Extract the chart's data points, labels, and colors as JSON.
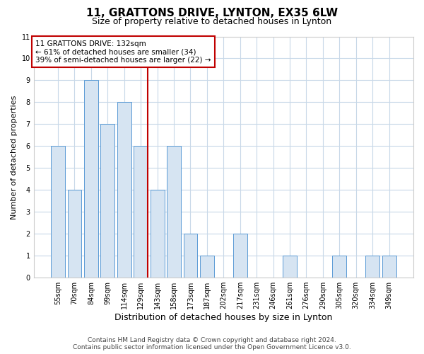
{
  "title": "11, GRATTONS DRIVE, LYNTON, EX35 6LW",
  "subtitle": "Size of property relative to detached houses in Lynton",
  "xlabel": "Distribution of detached houses by size in Lynton",
  "ylabel": "Number of detached properties",
  "categories": [
    "55sqm",
    "70sqm",
    "84sqm",
    "99sqm",
    "114sqm",
    "129sqm",
    "143sqm",
    "158sqm",
    "173sqm",
    "187sqm",
    "202sqm",
    "217sqm",
    "231sqm",
    "246sqm",
    "261sqm",
    "276sqm",
    "290sqm",
    "305sqm",
    "320sqm",
    "334sqm",
    "349sqm"
  ],
  "values": [
    6,
    4,
    9,
    7,
    8,
    6,
    4,
    6,
    2,
    1,
    0,
    2,
    0,
    0,
    1,
    0,
    0,
    1,
    0,
    1,
    1
  ],
  "bar_color": "#d6e4f2",
  "bar_edge_color": "#5b9bd5",
  "highlight_index": 5,
  "highlight_line_color": "#c00000",
  "annotation_lines": [
    "11 GRATTONS DRIVE: 132sqm",
    "← 61% of detached houses are smaller (34)",
    "39% of semi-detached houses are larger (22) →"
  ],
  "annotation_box_color": "#ffffff",
  "annotation_box_edge": "#c00000",
  "ylim": [
    0,
    11
  ],
  "yticks": [
    0,
    1,
    2,
    3,
    4,
    5,
    6,
    7,
    8,
    9,
    10,
    11
  ],
  "footer_line1": "Contains HM Land Registry data © Crown copyright and database right 2024.",
  "footer_line2": "Contains public sector information licensed under the Open Government Licence v3.0.",
  "plot_bg_color": "#ffffff",
  "fig_bg_color": "#ffffff",
  "grid_color": "#c8d8e8",
  "title_fontsize": 11,
  "subtitle_fontsize": 9,
  "xlabel_fontsize": 9,
  "ylabel_fontsize": 8,
  "tick_fontsize": 7,
  "annotation_fontsize": 7.5,
  "footer_fontsize": 6.5
}
